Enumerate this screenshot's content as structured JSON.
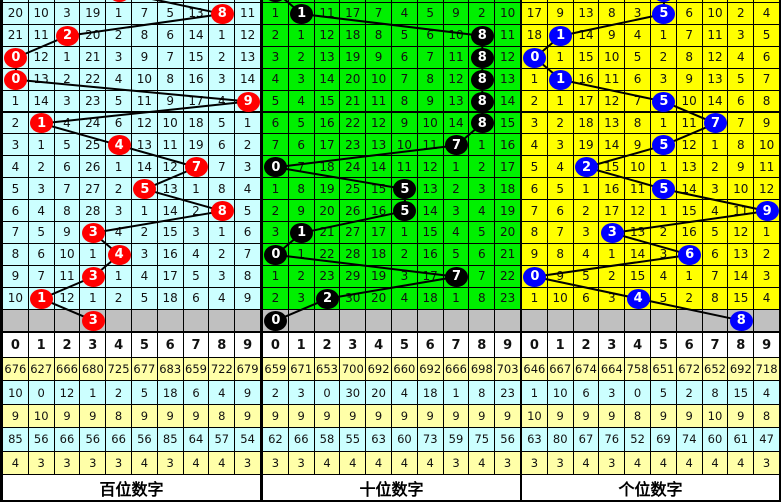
{
  "colors": {
    "hundreds_bg": "#ccffff",
    "tens_bg": "#00f000",
    "units_bg": "#ffff00",
    "hundreds_ball": "#ff0000",
    "tens_ball": "#000000",
    "units_ball": "#0000ff",
    "missing_row": "#c0c0c0",
    "stat_yellow": "#ffffa8",
    "stat_cyan": "#ccffff"
  },
  "digits_header": [
    "0",
    "1",
    "2",
    "3",
    "4",
    "5",
    "6",
    "7",
    "8",
    "9"
  ],
  "panels": [
    {
      "key": "hundreds",
      "title": "百位数字",
      "prior_ball": 4,
      "next_ball": 3,
      "balls": [
        8,
        2,
        0,
        0,
        9,
        1,
        4,
        7,
        5,
        8,
        3,
        4,
        3,
        1
      ],
      "rows": [
        [
          20,
          10,
          3,
          19,
          1,
          7,
          5,
          13,
          8,
          11
        ],
        [
          21,
          11,
          2,
          20,
          2,
          8,
          6,
          14,
          1,
          12
        ],
        [
          0,
          12,
          1,
          21,
          3,
          9,
          7,
          15,
          2,
          13
        ],
        [
          0,
          13,
          2,
          22,
          4,
          10,
          8,
          16,
          3,
          14
        ],
        [
          1,
          14,
          3,
          23,
          5,
          11,
          9,
          17,
          4,
          9
        ],
        [
          2,
          1,
          4,
          24,
          6,
          12,
          10,
          18,
          5,
          1
        ],
        [
          3,
          1,
          5,
          25,
          4,
          13,
          11,
          19,
          6,
          2
        ],
        [
          4,
          2,
          6,
          26,
          1,
          14,
          12,
          7,
          7,
          3
        ],
        [
          5,
          3,
          7,
          27,
          2,
          5,
          13,
          1,
          8,
          4
        ],
        [
          6,
          4,
          8,
          28,
          3,
          1,
          14,
          2,
          8,
          5
        ],
        [
          7,
          5,
          9,
          3,
          4,
          2,
          15,
          3,
          1,
          6
        ],
        [
          8,
          6,
          10,
          1,
          4,
          3,
          16,
          4,
          2,
          7
        ],
        [
          9,
          7,
          11,
          3,
          1,
          4,
          17,
          5,
          3,
          8
        ],
        [
          10,
          1,
          12,
          1,
          2,
          5,
          18,
          6,
          4,
          9
        ]
      ],
      "stats": [
        [
          676,
          627,
          666,
          680,
          725,
          677,
          683,
          659,
          722,
          679
        ],
        [
          10,
          0,
          12,
          1,
          2,
          5,
          18,
          6,
          4,
          9
        ],
        [
          9,
          10,
          9,
          9,
          8,
          9,
          9,
          9,
          8,
          9
        ],
        [
          85,
          56,
          66,
          56,
          66,
          56,
          85,
          64,
          57,
          54
        ],
        [
          4,
          3,
          3,
          3,
          3,
          4,
          3,
          4,
          4,
          3
        ]
      ]
    },
    {
      "key": "tens",
      "title": "十位数字",
      "prior_ball": 0,
      "next_ball": 0,
      "balls": [
        1,
        8,
        8,
        8,
        8,
        8,
        7,
        0,
        5,
        5,
        1,
        0,
        7,
        2
      ],
      "rows": [
        [
          1,
          1,
          11,
          17,
          7,
          4,
          5,
          9,
          2,
          10
        ],
        [
          2,
          1,
          12,
          18,
          8,
          5,
          6,
          10,
          8,
          11
        ],
        [
          3,
          2,
          13,
          19,
          9,
          6,
          7,
          11,
          8,
          12
        ],
        [
          4,
          3,
          14,
          20,
          10,
          7,
          8,
          12,
          8,
          13
        ],
        [
          5,
          4,
          15,
          21,
          11,
          8,
          9,
          13,
          8,
          14
        ],
        [
          6,
          5,
          16,
          22,
          12,
          9,
          10,
          14,
          8,
          15
        ],
        [
          7,
          6,
          17,
          23,
          13,
          10,
          11,
          7,
          1,
          16
        ],
        [
          0,
          7,
          18,
          24,
          14,
          11,
          12,
          1,
          2,
          17
        ],
        [
          1,
          8,
          19,
          25,
          15,
          5,
          13,
          2,
          3,
          18
        ],
        [
          2,
          9,
          20,
          26,
          16,
          5,
          14,
          3,
          4,
          19
        ],
        [
          3,
          1,
          21,
          27,
          17,
          1,
          15,
          4,
          5,
          20
        ],
        [
          0,
          1,
          22,
          28,
          18,
          2,
          16,
          5,
          6,
          21
        ],
        [
          1,
          2,
          23,
          29,
          19,
          3,
          17,
          7,
          7,
          22
        ],
        [
          2,
          3,
          2,
          30,
          20,
          4,
          18,
          1,
          8,
          23
        ]
      ],
      "stats": [
        [
          659,
          671,
          653,
          700,
          692,
          660,
          692,
          666,
          698,
          703
        ],
        [
          2,
          3,
          0,
          30,
          20,
          4,
          18,
          1,
          8,
          23
        ],
        [
          9,
          9,
          9,
          9,
          9,
          9,
          9,
          9,
          9,
          9
        ],
        [
          62,
          66,
          58,
          55,
          63,
          60,
          73,
          59,
          75,
          56
        ],
        [
          3,
          3,
          4,
          4,
          4,
          4,
          4,
          3,
          4,
          3
        ]
      ]
    },
    {
      "key": "units",
      "title": "个位数字",
      "prior_ball": 5,
      "next_ball": 8,
      "balls": [
        5,
        1,
        0,
        1,
        5,
        7,
        5,
        2,
        5,
        9,
        3,
        6,
        0,
        4
      ],
      "rows": [
        [
          17,
          9,
          13,
          8,
          3,
          5,
          6,
          10,
          2,
          4
        ],
        [
          18,
          1,
          14,
          9,
          4,
          1,
          7,
          11,
          3,
          5
        ],
        [
          0,
          1,
          15,
          10,
          5,
          2,
          8,
          12,
          4,
          6
        ],
        [
          1,
          1,
          16,
          11,
          6,
          3,
          9,
          13,
          5,
          7
        ],
        [
          2,
          1,
          17,
          12,
          7,
          5,
          10,
          14,
          6,
          8
        ],
        [
          3,
          2,
          18,
          13,
          8,
          1,
          11,
          7,
          7,
          9
        ],
        [
          4,
          3,
          19,
          14,
          9,
          5,
          12,
          1,
          8,
          10
        ],
        [
          5,
          4,
          2,
          15,
          10,
          1,
          13,
          2,
          9,
          11
        ],
        [
          6,
          5,
          1,
          16,
          11,
          5,
          14,
          3,
          10,
          12
        ],
        [
          7,
          6,
          2,
          17,
          12,
          1,
          15,
          4,
          11,
          9
        ],
        [
          8,
          7,
          3,
          3,
          13,
          2,
          16,
          5,
          12,
          1
        ],
        [
          9,
          8,
          4,
          1,
          14,
          3,
          6,
          6,
          13,
          2
        ],
        [
          0,
          9,
          5,
          2,
          15,
          4,
          1,
          7,
          14,
          3
        ],
        [
          1,
          10,
          6,
          3,
          4,
          5,
          2,
          8,
          15,
          4
        ]
      ],
      "stats": [
        [
          646,
          667,
          674,
          664,
          758,
          651,
          672,
          652,
          692,
          718
        ],
        [
          1,
          10,
          6,
          3,
          0,
          5,
          2,
          8,
          15,
          4
        ],
        [
          10,
          9,
          9,
          9,
          8,
          9,
          9,
          10,
          9,
          8
        ],
        [
          63,
          80,
          67,
          76,
          52,
          69,
          74,
          60,
          61,
          47
        ],
        [
          3,
          3,
          4,
          3,
          4,
          4,
          4,
          4,
          4,
          3
        ]
      ]
    }
  ]
}
